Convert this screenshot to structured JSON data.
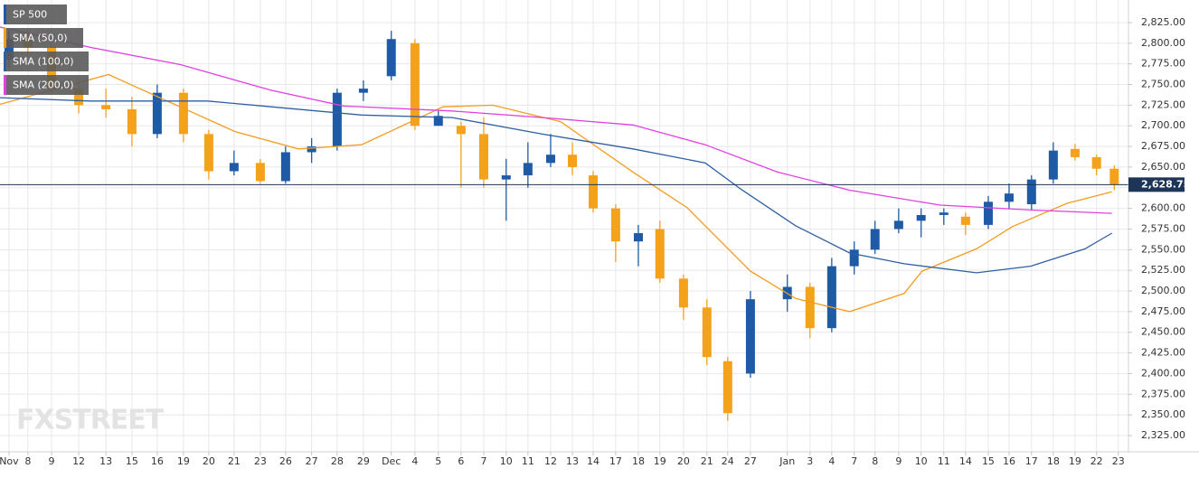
{
  "chart_data": {
    "type": "candlestick",
    "watermark": "FXSTREET",
    "xlim": [
      -0.38,
      47.35
    ],
    "ylim": [
      2305.3,
      2852.3
    ],
    "grid": true,
    "up_color": "#1f5aa6",
    "down_color": "#f4a11c",
    "yticks": [
      {
        "value": 2325,
        "label": "2,325.00"
      },
      {
        "value": 2350,
        "label": "2,350.00"
      },
      {
        "value": 2375,
        "label": "2,375.00"
      },
      {
        "value": 2400,
        "label": "2,400.00"
      },
      {
        "value": 2425,
        "label": "2,425.00"
      },
      {
        "value": 2450,
        "label": "2,450.00"
      },
      {
        "value": 2475,
        "label": "2,475.00"
      },
      {
        "value": 2500,
        "label": "2,500.00"
      },
      {
        "value": 2525,
        "label": "2,525.00"
      },
      {
        "value": 2550,
        "label": "2,550.00"
      },
      {
        "value": 2575,
        "label": "2,575.00"
      },
      {
        "value": 2600,
        "label": "2,600.00"
      },
      {
        "value": 2625,
        "label": "2,625.00"
      },
      {
        "value": 2650,
        "label": "2,650.00"
      },
      {
        "value": 2675,
        "label": "2,675.00"
      },
      {
        "value": 2700,
        "label": "2,700.00"
      },
      {
        "value": 2725,
        "label": "2,725.00"
      },
      {
        "value": 2750,
        "label": "2,750.00"
      },
      {
        "value": 2775,
        "label": "2,775.00"
      },
      {
        "value": 2800,
        "label": "2,800.00"
      },
      {
        "value": 2825,
        "label": "2,825.00"
      }
    ],
    "xticks": [
      {
        "value": 0,
        "label": "Nov"
      },
      {
        "value": 0.8,
        "label": "8"
      },
      {
        "value": 1.8,
        "label": "9"
      },
      {
        "value": 2.95,
        "label": "12"
      },
      {
        "value": 4.1,
        "label": "13"
      },
      {
        "value": 5.2,
        "label": "15"
      },
      {
        "value": 6.27,
        "label": "16"
      },
      {
        "value": 7.38,
        "label": "19"
      },
      {
        "value": 8.45,
        "label": "20"
      },
      {
        "value": 9.52,
        "label": "21"
      },
      {
        "value": 10.63,
        "label": "23"
      },
      {
        "value": 11.7,
        "label": "26"
      },
      {
        "value": 12.8,
        "label": "27"
      },
      {
        "value": 13.88,
        "label": "28"
      },
      {
        "value": 14.99,
        "label": "29"
      },
      {
        "value": 16.17,
        "label": "Dec"
      },
      {
        "value": 17.17,
        "label": "4"
      },
      {
        "value": 18.16,
        "label": "5"
      },
      {
        "value": 19.12,
        "label": "6"
      },
      {
        "value": 20.08,
        "label": "7"
      },
      {
        "value": 21.03,
        "label": "10"
      },
      {
        "value": 21.95,
        "label": "11"
      },
      {
        "value": 22.91,
        "label": "12"
      },
      {
        "value": 23.83,
        "label": "13"
      },
      {
        "value": 24.71,
        "label": "14"
      },
      {
        "value": 25.66,
        "label": "17"
      },
      {
        "value": 26.62,
        "label": "18"
      },
      {
        "value": 27.53,
        "label": "19"
      },
      {
        "value": 28.53,
        "label": "20"
      },
      {
        "value": 29.52,
        "label": "21"
      },
      {
        "value": 30.4,
        "label": "24"
      },
      {
        "value": 31.36,
        "label": "27"
      },
      {
        "value": 32.92,
        "label": "Jan"
      },
      {
        "value": 33.88,
        "label": "3"
      },
      {
        "value": 34.8,
        "label": "4"
      },
      {
        "value": 35.75,
        "label": "7"
      },
      {
        "value": 36.63,
        "label": "8"
      },
      {
        "value": 37.63,
        "label": "9"
      },
      {
        "value": 38.58,
        "label": "10"
      },
      {
        "value": 39.54,
        "label": "11"
      },
      {
        "value": 40.46,
        "label": "14"
      },
      {
        "value": 41.42,
        "label": "15"
      },
      {
        "value": 42.3,
        "label": "16"
      },
      {
        "value": 43.25,
        "label": "17"
      },
      {
        "value": 44.17,
        "label": "18"
      },
      {
        "value": 45.09,
        "label": "19"
      },
      {
        "value": 46.0,
        "label": "22"
      },
      {
        "value": 46.92,
        "label": "23"
      }
    ],
    "candles": {
      "name": "SP 500",
      "x": [
        0,
        0.8,
        1.8,
        2.95,
        4.1,
        5.2,
        6.27,
        7.38,
        8.45,
        9.52,
        10.63,
        11.7,
        12.8,
        13.88,
        14.99,
        16.17,
        17.17,
        18.16,
        19.12,
        20.08,
        21.03,
        21.95,
        22.91,
        23.83,
        24.71,
        25.66,
        26.62,
        27.53,
        28.53,
        29.52,
        30.4,
        31.36,
        32.92,
        33.88,
        34.8,
        35.75,
        36.63,
        37.63,
        38.58,
        39.54,
        40.46,
        41.42,
        42.3,
        43.25,
        44.17,
        45.09,
        46.0,
        46.75
      ],
      "open": [
        2780,
        2810,
        2795,
        2745,
        2725,
        2720,
        2690,
        2740,
        2690,
        2645,
        2655,
        2633,
        2668,
        2675,
        2740,
        2760,
        2800,
        2700,
        2700,
        2690,
        2635,
        2640,
        2655,
        2665,
        2640,
        2600,
        2560,
        2575,
        2515,
        2480,
        2415,
        2400,
        2490,
        2505,
        2455,
        2530,
        2550,
        2575,
        2585,
        2592,
        2590,
        2580,
        2608,
        2605,
        2635,
        2672,
        2662,
        2648
      ],
      "high": [
        2815,
        2815,
        2800,
        2755,
        2745,
        2735,
        2750,
        2745,
        2695,
        2670,
        2660,
        2675,
        2685,
        2745,
        2755,
        2815,
        2805,
        2718,
        2705,
        2710,
        2660,
        2680,
        2690,
        2680,
        2645,
        2605,
        2580,
        2585,
        2520,
        2490,
        2420,
        2500,
        2520,
        2510,
        2540,
        2560,
        2585,
        2600,
        2600,
        2600,
        2595,
        2615,
        2630,
        2640,
        2680,
        2678,
        2665,
        2652
      ],
      "low": [
        2770,
        2785,
        2740,
        2715,
        2710,
        2675,
        2685,
        2680,
        2635,
        2640,
        2630,
        2630,
        2655,
        2670,
        2730,
        2755,
        2695,
        2700,
        2625,
        2625,
        2585,
        2625,
        2650,
        2640,
        2595,
        2535,
        2530,
        2510,
        2465,
        2410,
        2343,
        2395,
        2475,
        2443,
        2450,
        2520,
        2545,
        2570,
        2565,
        2580,
        2568,
        2575,
        2600,
        2598,
        2630,
        2658,
        2640,
        2622
      ],
      "close": [
        2805,
        2795,
        2745,
        2725,
        2720,
        2690,
        2740,
        2690,
        2645,
        2655,
        2633,
        2668,
        2675,
        2740,
        2745,
        2805,
        2700,
        2712,
        2690,
        2635,
        2640,
        2655,
        2665,
        2650,
        2600,
        2560,
        2570,
        2515,
        2480,
        2420,
        2352,
        2490,
        2505,
        2455,
        2530,
        2550,
        2575,
        2585,
        2592,
        2595,
        2580,
        2608,
        2618,
        2635,
        2670,
        2662,
        2648,
        2628.75
      ]
    },
    "last_price": {
      "value": 2628.75,
      "label": "2,628.75"
    },
    "series": [
      {
        "name": "SMA (50,0)",
        "color": "#f39c1f",
        "x": [
          -0.38,
          4.21,
          9.56,
          12.24,
          14.91,
          18.36,
          20.46,
          23.33,
          26.39,
          28.68,
          31.36,
          33.27,
          35.56,
          37.86,
          38.62,
          40.92,
          42.45,
          44.74,
          46.65
        ],
        "values": [
          2726,
          2762,
          2693,
          2672,
          2677,
          2723,
          2725,
          2705,
          2644,
          2601,
          2524,
          2491,
          2475,
          2497,
          2524,
          2551,
          2578,
          2606,
          2620
        ]
      },
      {
        "name": "SMA (100,0)",
        "color": "#2e5fa3",
        "x": [
          -0.38,
          3.44,
          8.41,
          11.09,
          14.91,
          18.74,
          22.56,
          26.39,
          29.45,
          30.97,
          33.27,
          35.56,
          37.86,
          40.92,
          43.21,
          45.51,
          46.65
        ],
        "values": [
          2734,
          2730,
          2730,
          2723,
          2713,
          2710,
          2690,
          2672,
          2655,
          2623,
          2579,
          2546,
          2533,
          2522,
          2530,
          2551,
          2570
        ]
      },
      {
        "name": "SMA (200,0)",
        "color": "#e040e0",
        "x": [
          -0.38,
          3.44,
          7.27,
          11.09,
          14.15,
          18.74,
          22.56,
          26.39,
          29.45,
          32.5,
          35.56,
          39.39,
          43.21,
          46.65
        ],
        "values": [
          2819.5,
          2795,
          2774,
          2743,
          2724,
          2718,
          2710,
          2701,
          2677,
          2644,
          2622,
          2604,
          2598,
          2594
        ]
      }
    ]
  }
}
